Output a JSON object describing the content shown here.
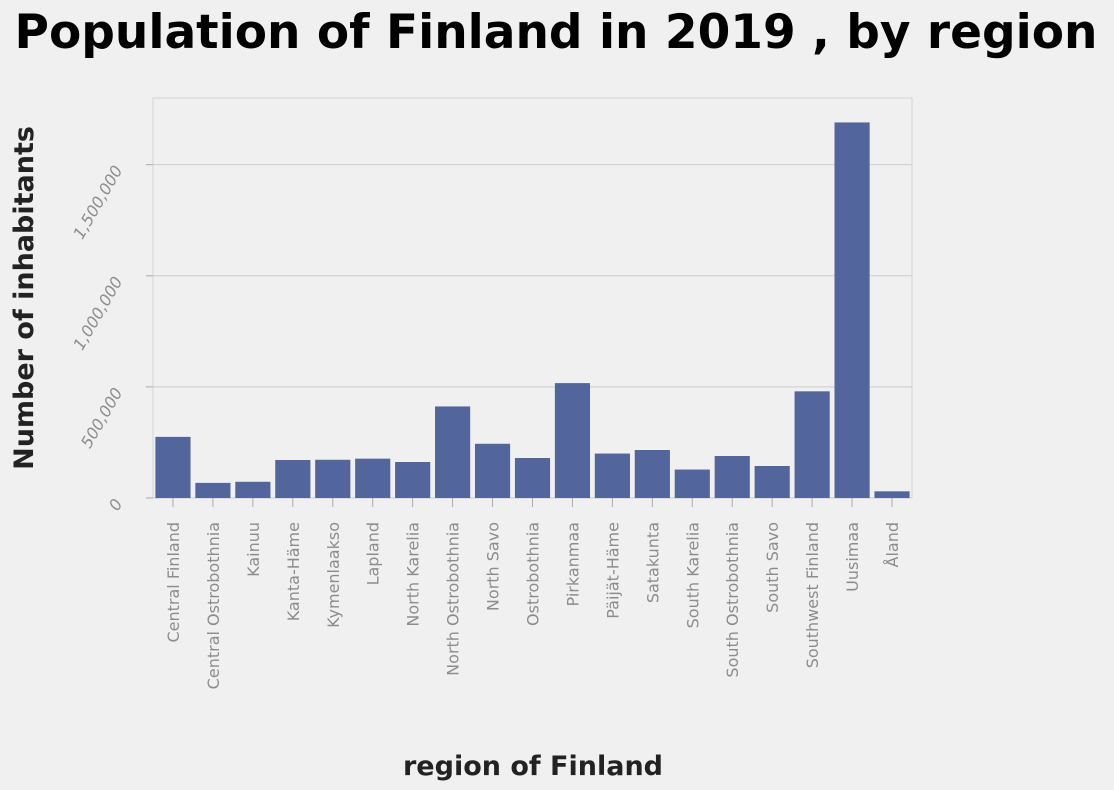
{
  "chart_data": {
    "type": "bar",
    "title": "Population of Finland in 2019 , by region",
    "xlabel": "region of Finland",
    "ylabel": "Number of inhabitants",
    "categories": [
      "Central Finland",
      "Central Ostrobothnia",
      "Kainuu",
      "Kanta-Häme",
      "Kymenlaakso",
      "Lapland",
      "North Karelia",
      "North Ostrobothnia",
      "North Savo",
      "Ostrobothnia",
      "Pirkanmaa",
      "Päijät-Häme",
      "Satakunta",
      "South Karelia",
      "South Ostrobothnia",
      "South Savo",
      "Southwest Finland",
      "Uusimaa",
      "Åland"
    ],
    "values": [
      275000,
      68000,
      73000,
      171000,
      172000,
      177000,
      162000,
      412000,
      244000,
      180000,
      517000,
      200000,
      216000,
      128000,
      189000,
      144000,
      480000,
      1690000,
      30000
    ],
    "ylim": [
      0,
      1800000
    ],
    "yticks": [
      0,
      500000,
      1000000,
      1500000
    ],
    "ytick_labels": [
      "0",
      "500,000",
      "1,000,000",
      "1,500,000"
    ],
    "grid": true,
    "legend": "none",
    "colors": {
      "bar": "#52659d",
      "background": "#f0f0f0",
      "grid": "#cccccc",
      "tick_text": "#8c8c8c"
    }
  }
}
